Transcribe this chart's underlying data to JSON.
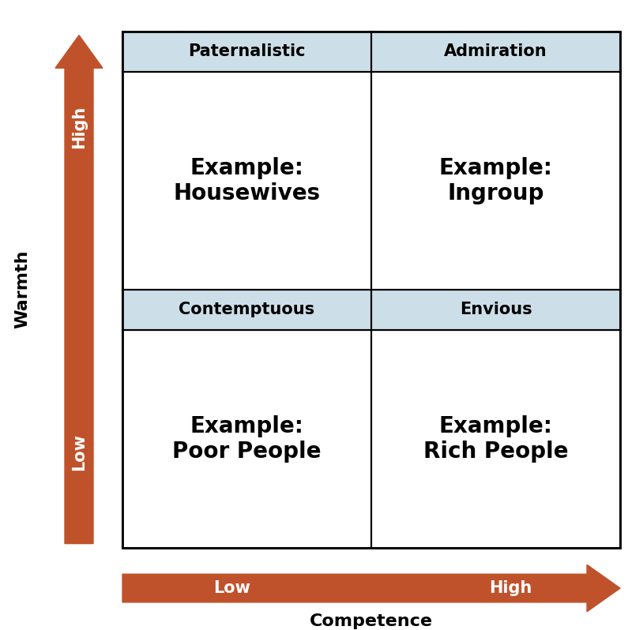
{
  "arrow_color": "#C0522B",
  "header_bg_color": "#CCDEE8",
  "cell_bg_white": "#FFFFFF",
  "grid_color": "#000000",
  "text_color_black": "#000000",
  "text_color_white": "#FFFFFF",
  "header_labels": [
    "Paternalistic",
    "Admiration",
    "Contemptuous",
    "Envious"
  ],
  "cell_labels": [
    "Example:\nHousewives",
    "Example:\nIngroup",
    "Example:\nPoor People",
    "Example:\nRich People"
  ],
  "axis_label_warmth": "Warmth",
  "axis_label_competence": "Competence",
  "high_label_warmth": "High",
  "low_label_warmth": "Low",
  "low_label_competence": "Low",
  "high_label_competence": "High",
  "header_fontsize": 15,
  "cell_fontsize": 20,
  "axis_label_fontsize": 16,
  "arrow_label_fontsize": 15
}
